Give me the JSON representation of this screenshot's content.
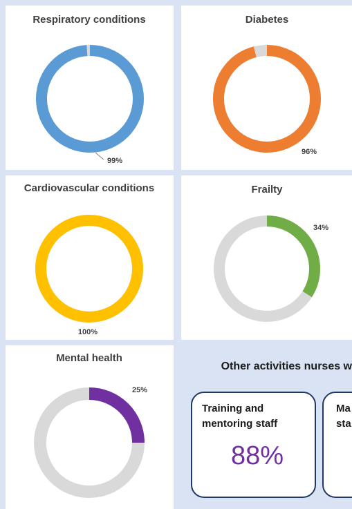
{
  "chart_data": [
    {
      "type": "pie",
      "title": "Respiratory conditions",
      "values": [
        99
      ],
      "value_labels": [
        "99%"
      ],
      "color": "#5b9bd5"
    },
    {
      "type": "pie",
      "title": "Diabetes",
      "values": [
        96
      ],
      "value_labels": [
        "96%"
      ],
      "color": "#ed7d31"
    },
    {
      "type": "pie",
      "title": "Cardiovascular conditions",
      "values": [
        100
      ],
      "value_labels": [
        "100%"
      ],
      "color": "#ffc000"
    },
    {
      "type": "pie",
      "title": "Frailty",
      "values": [
        34
      ],
      "value_labels": [
        "34%"
      ],
      "color": "#70ad47"
    },
    {
      "type": "pie",
      "title": "Mental health",
      "values": [
        25
      ],
      "value_labels": [
        "25%"
      ],
      "color": "#7030a0"
    }
  ],
  "activities": {
    "title": "Other activities nurses w",
    "cards": [
      {
        "lines": [
          "Training and",
          "mentoring staff"
        ],
        "value": "88%"
      },
      {
        "lines": [
          "Ma",
          "sta"
        ]
      }
    ]
  }
}
